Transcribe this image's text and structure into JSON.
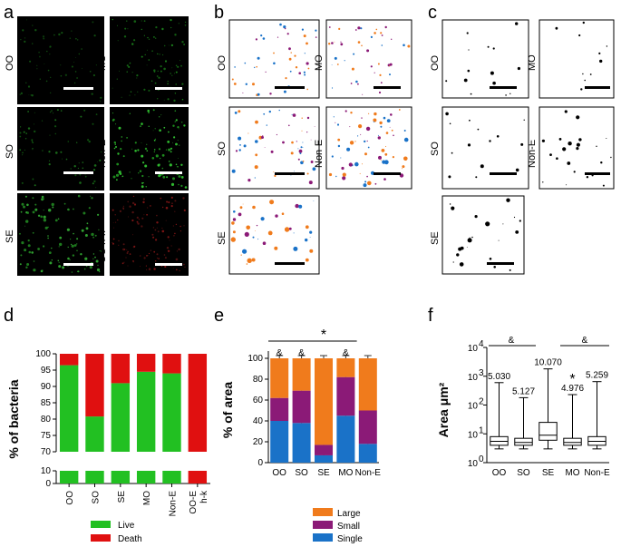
{
  "figure": {
    "panel_letters": [
      "a",
      "b",
      "c",
      "d",
      "e",
      "f"
    ],
    "image_panels": {
      "a": {
        "labels": [
          "OO",
          "MO",
          "SO",
          "Non-E",
          "SE",
          "OO h-k"
        ]
      },
      "b": {
        "labels": [
          "OO",
          "MO",
          "SO",
          "Non-E",
          "SE"
        ]
      },
      "c": {
        "labels": [
          "OO",
          "MO",
          "SO",
          "Non-E",
          "SE"
        ]
      }
    }
  },
  "chart_data": [
    {
      "panel": "d",
      "type": "bar",
      "stacked": true,
      "ylabel": "% of bacteria",
      "categories": [
        "OO",
        "SO",
        "SE",
        "MO",
        "Non-E",
        "OO-E h-k"
      ],
      "category_labels": [
        "OO",
        "SO",
        "SE",
        "MO",
        "Non-E",
        "OO-E",
        "h-k"
      ],
      "yticks_top": [
        70,
        75,
        80,
        85,
        90,
        95,
        100
      ],
      "yticks_bottom": [
        0,
        10
      ],
      "axis_break": true,
      "series": [
        {
          "name": "Live",
          "color": "#22c022",
          "values": [
            96.5,
            80.8,
            91.0,
            94.5,
            94.0,
            0
          ]
        },
        {
          "name": "Death",
          "color": "#e01010",
          "values": [
            3.5,
            19.2,
            9.0,
            5.5,
            6.0,
            100
          ]
        }
      ],
      "legend": [
        "Live",
        "Death"
      ]
    },
    {
      "panel": "e",
      "type": "bar",
      "stacked": true,
      "ylabel": "% of area",
      "categories": [
        "OO",
        "SO",
        "SE",
        "MO",
        "Non-E"
      ],
      "yticks": [
        0,
        20,
        40,
        60,
        80,
        100
      ],
      "ylim": [
        0,
        105
      ],
      "series": [
        {
          "name": "Single",
          "color": "#1a72c8",
          "values": [
            40,
            38,
            7,
            45,
            18
          ]
        },
        {
          "name": "Small",
          "color": "#8b1a77",
          "values": [
            22,
            31,
            10,
            37,
            32
          ]
        },
        {
          "name": "Large",
          "color": "#f07b1c",
          "values": [
            38,
            31,
            83,
            18,
            50
          ]
        }
      ],
      "legend": [
        "Large",
        "Small",
        "Single"
      ],
      "annotations": {
        "star": "*",
        "amp": "&",
        "amp_categories": [
          "OO",
          "SO",
          "MO"
        ]
      }
    },
    {
      "panel": "f",
      "type": "box",
      "ylabel": "Area μm²",
      "categories": [
        "OO",
        "SO",
        "SE",
        "MO",
        "Non-E"
      ],
      "yscale": "log",
      "ylim": [
        1,
        10000
      ],
      "ytick_base": "10",
      "ytick_exps": [
        "0",
        "1",
        "2",
        "3",
        "4"
      ],
      "boxes": [
        {
          "min": 3,
          "q1": 4,
          "median": 5.5,
          "q3": 8,
          "max": 600
        },
        {
          "min": 3,
          "q1": 4,
          "median": 5,
          "q3": 7,
          "max": 180
        },
        {
          "min": 3,
          "q1": 6,
          "median": 9,
          "q3": 25,
          "max": 1800
        },
        {
          "min": 3,
          "q1": 4,
          "median": 5,
          "q3": 7,
          "max": 230
        },
        {
          "min": 3,
          "q1": 4,
          "median": 5.5,
          "q3": 8,
          "max": 650
        }
      ],
      "max_labels": [
        "5.030",
        "5.127",
        "10.070",
        "4.976",
        "5.259"
      ],
      "annotations": {
        "star": "*",
        "amp": "&"
      }
    }
  ]
}
